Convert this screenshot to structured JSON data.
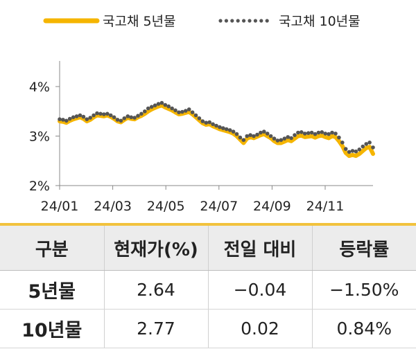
{
  "chart_data": {
    "type": "line",
    "x_axis": {
      "ticks": [
        "24/01",
        "24/03",
        "24/05",
        "24/07",
        "24/09",
        "24/11"
      ]
    },
    "y_axis": {
      "ticks": [
        "2%",
        "3%",
        "4%"
      ],
      "range": [
        2,
        4.3
      ]
    },
    "series": [
      {
        "name": "국고채 5년물",
        "style": "solid",
        "color": "#f5b500",
        "values": [
          3.3,
          3.29,
          3.27,
          3.31,
          3.34,
          3.36,
          3.38,
          3.35,
          3.3,
          3.33,
          3.38,
          3.42,
          3.41,
          3.4,
          3.42,
          3.39,
          3.35,
          3.3,
          3.28,
          3.33,
          3.37,
          3.35,
          3.34,
          3.38,
          3.41,
          3.45,
          3.5,
          3.54,
          3.57,
          3.6,
          3.62,
          3.58,
          3.55,
          3.52,
          3.48,
          3.44,
          3.45,
          3.47,
          3.49,
          3.44,
          3.38,
          3.32,
          3.26,
          3.23,
          3.24,
          3.2,
          3.17,
          3.14,
          3.12,
          3.1,
          3.08,
          3.05,
          3.0,
          2.93,
          2.86,
          2.95,
          2.98,
          2.96,
          2.99,
          3.02,
          3.04,
          3.0,
          2.96,
          2.9,
          2.86,
          2.86,
          2.89,
          2.92,
          2.9,
          2.95,
          3.0,
          3.01,
          2.98,
          2.99,
          3.0,
          2.97,
          3.0,
          3.01,
          2.98,
          2.96,
          3.0,
          2.98,
          2.9,
          2.8,
          2.66,
          2.6,
          2.62,
          2.6,
          2.64,
          2.7,
          2.76,
          2.78,
          2.64
        ]
      },
      {
        "name": "국고채 10년물",
        "style": "dotted",
        "color": "#555555",
        "values": [
          3.34,
          3.33,
          3.31,
          3.35,
          3.38,
          3.4,
          3.42,
          3.39,
          3.34,
          3.37,
          3.42,
          3.46,
          3.45,
          3.44,
          3.45,
          3.42,
          3.38,
          3.33,
          3.31,
          3.36,
          3.4,
          3.38,
          3.37,
          3.41,
          3.45,
          3.5,
          3.56,
          3.59,
          3.62,
          3.65,
          3.67,
          3.63,
          3.6,
          3.56,
          3.52,
          3.48,
          3.49,
          3.51,
          3.54,
          3.48,
          3.42,
          3.36,
          3.3,
          3.27,
          3.28,
          3.24,
          3.21,
          3.18,
          3.16,
          3.14,
          3.12,
          3.09,
          3.04,
          2.97,
          2.92,
          3.0,
          3.02,
          3.0,
          3.03,
          3.07,
          3.09,
          3.05,
          3.0,
          2.95,
          2.91,
          2.92,
          2.95,
          2.98,
          2.96,
          3.02,
          3.07,
          3.08,
          3.05,
          3.06,
          3.07,
          3.04,
          3.07,
          3.08,
          3.05,
          3.04,
          3.07,
          3.05,
          2.97,
          2.87,
          2.74,
          2.68,
          2.7,
          2.69,
          2.73,
          2.79,
          2.84,
          2.87,
          2.77
        ]
      }
    ],
    "grid": false,
    "legend_position": "top"
  },
  "table": {
    "headers": [
      "구분",
      "현재가(%)",
      "전일 대비",
      "등락률"
    ],
    "rows": [
      [
        "5년물",
        "2.64",
        "−0.04",
        "−1.50%"
      ],
      [
        "10년물",
        "2.77",
        "0.02",
        "0.84%"
      ]
    ]
  }
}
